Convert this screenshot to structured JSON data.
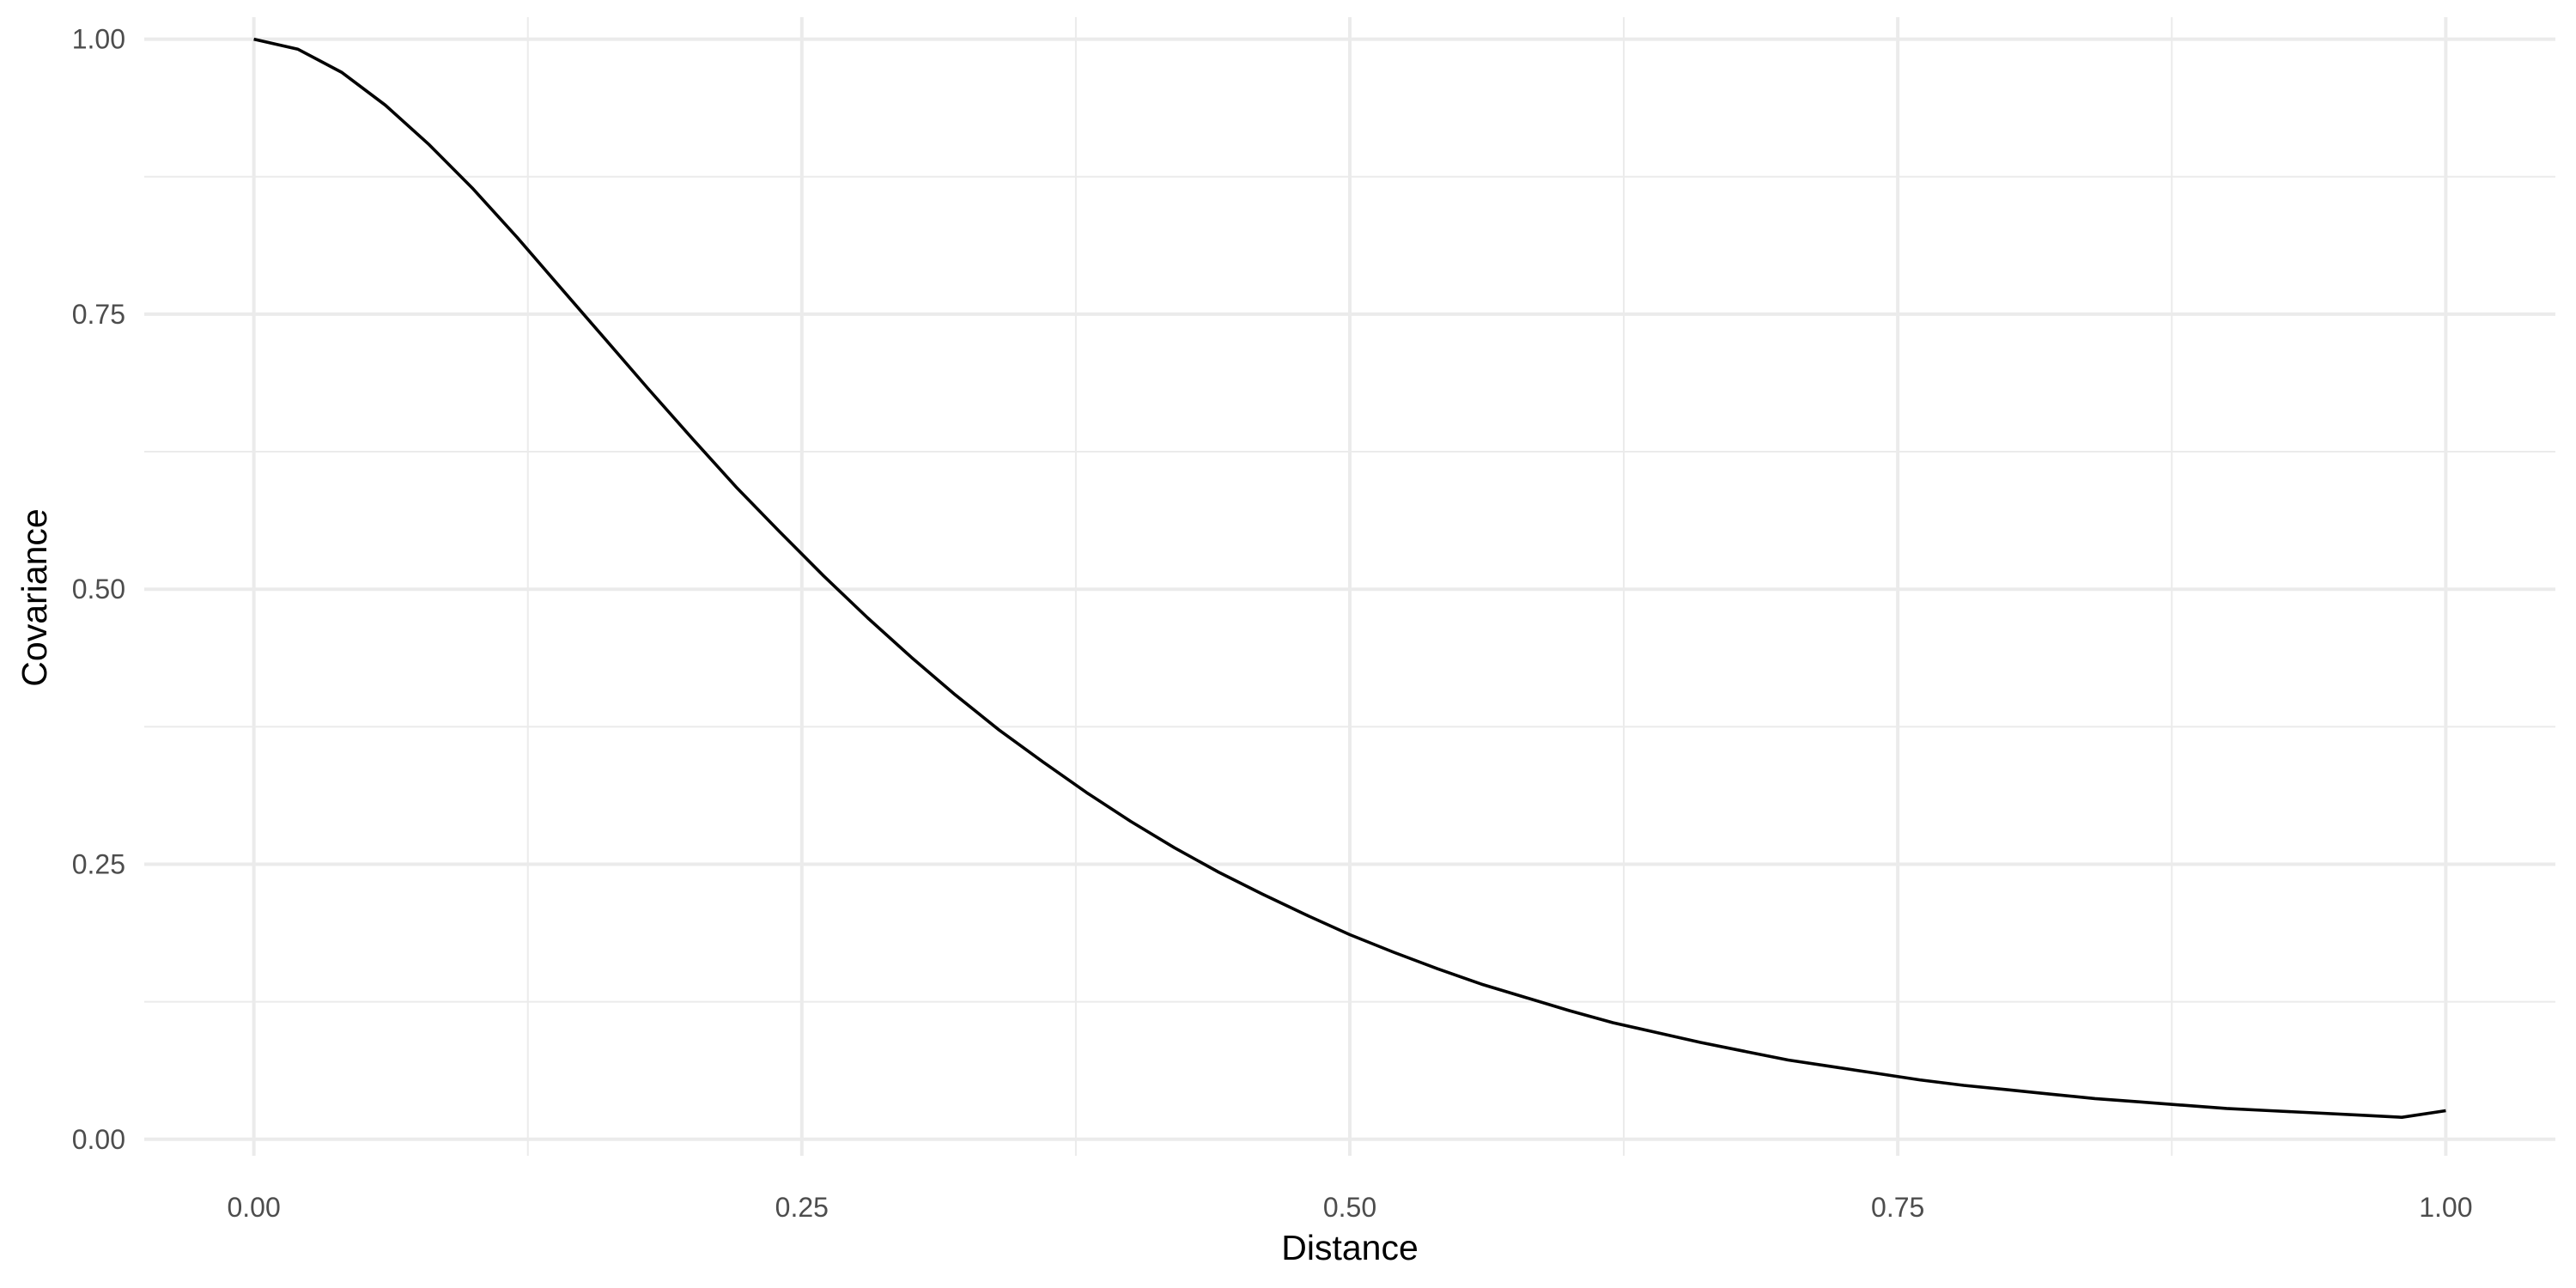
{
  "chart_data": {
    "type": "line",
    "title": "",
    "xlabel": "Distance",
    "ylabel": "Covariance",
    "xlim": [
      -0.05,
      1.05
    ],
    "ylim": [
      -0.015,
      1.02
    ],
    "x_ticks": [
      0,
      0.25,
      0.5,
      0.75,
      1
    ],
    "x_tick_labels": [
      "0.00",
      "0.25",
      "0.50",
      "0.75",
      "1.00"
    ],
    "y_ticks": [
      0,
      0.25,
      0.5,
      0.75,
      1
    ],
    "y_tick_labels": [
      "0.00",
      "0.25",
      "0.50",
      "0.75",
      "1.00"
    ],
    "grid": true,
    "line_color": "#000000",
    "series": [
      {
        "x": [
          0,
          0.02,
          0.04,
          0.06,
          0.08,
          0.1,
          0.12,
          0.14,
          0.16,
          0.18,
          0.2,
          0.22,
          0.24,
          0.26,
          0.28,
          0.3,
          0.32,
          0.34,
          0.36,
          0.38,
          0.4,
          0.42,
          0.44,
          0.46,
          0.48,
          0.5,
          0.52,
          0.54,
          0.56,
          0.58,
          0.6,
          0.62,
          0.64,
          0.66,
          0.68,
          0.7,
          0.72,
          0.74,
          0.76,
          0.78,
          0.8,
          0.82,
          0.84,
          0.86,
          0.88,
          0.9,
          0.92,
          0.94,
          0.96,
          0.98,
          1.0
        ],
        "values": [
          1.0,
          0.991,
          0.97,
          0.94,
          0.904,
          0.864,
          0.82,
          0.774,
          0.728,
          0.682,
          0.637,
          0.593,
          0.552,
          0.512,
          0.474,
          0.438,
          0.404,
          0.372,
          0.343,
          0.315,
          0.289,
          0.265,
          0.243,
          0.223,
          0.204,
          0.186,
          0.17,
          0.155,
          0.141,
          0.129,
          0.117,
          0.106,
          0.097,
          0.088,
          0.08,
          0.072,
          0.066,
          0.06,
          0.054,
          0.049,
          0.045,
          0.041,
          0.037,
          0.034,
          0.031,
          0.028,
          0.026,
          0.024,
          0.022,
          0.02,
          0.026
        ]
      }
    ]
  }
}
